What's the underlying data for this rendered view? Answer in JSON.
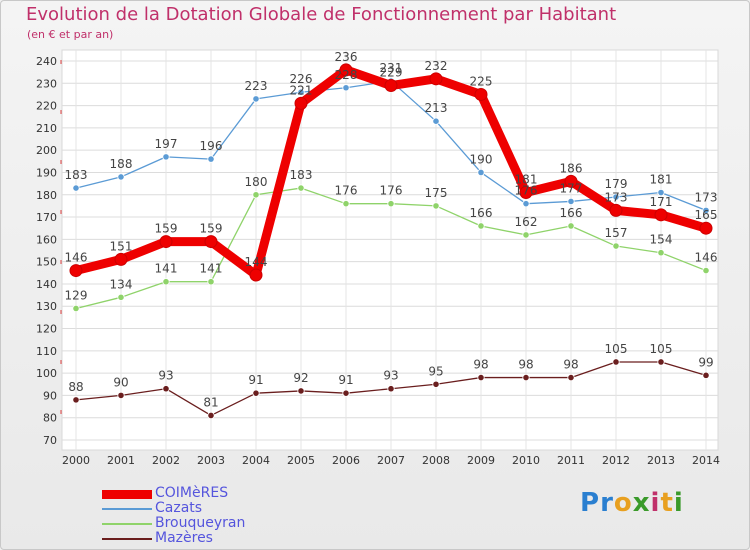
{
  "title": "Evolution de la Dotation Globale de Fonctionnement par Habitant",
  "subtitle": "(en € et par an)",
  "logo": {
    "letters": [
      {
        "ch": "P",
        "color": "#2a7fd0"
      },
      {
        "ch": "r",
        "color": "#2a7fd0"
      },
      {
        "ch": "o",
        "color": "#e8a020"
      },
      {
        "ch": "x",
        "color": "#3a9a2a"
      },
      {
        "ch": "i",
        "color": "#c0306a"
      },
      {
        "ch": "t",
        "color": "#e8a020"
      },
      {
        "ch": "i",
        "color": "#3a9a2a"
      }
    ]
  },
  "chart_data": {
    "type": "line",
    "title": "Evolution de la Dotation Globale de Fonctionnement par Habitant",
    "subtitle": "(en € et par an)",
    "xlabel": "",
    "ylabel": "",
    "ylim": [
      70,
      240
    ],
    "yticks": [
      70,
      80,
      90,
      100,
      110,
      120,
      130,
      140,
      150,
      160,
      170,
      180,
      190,
      200,
      210,
      220,
      230,
      240
    ],
    "grid": true,
    "legend": "bottom-left",
    "x": [
      "2000",
      "2001",
      "2002",
      "2003",
      "2004",
      "2005",
      "2006",
      "2007",
      "2008",
      "2009",
      "2010",
      "2011",
      "2012",
      "2013",
      "2014"
    ],
    "series": [
      {
        "name": "Brouqueyran",
        "color": "#8fd36a",
        "values": [
          129,
          134,
          141,
          141,
          180,
          183,
          176,
          176,
          175,
          166,
          162,
          166,
          157,
          154,
          146
        ]
      },
      {
        "name": "Mazères",
        "color": "#6a1e1e",
        "values": [
          88,
          90,
          93,
          81,
          91,
          92,
          91,
          93,
          95,
          98,
          98,
          98,
          105,
          105,
          99
        ]
      },
      {
        "name": "Cazats",
        "color": "#5b9bd5",
        "values": [
          183,
          188,
          197,
          196,
          223,
          226,
          228,
          231,
          213,
          190,
          176,
          177,
          179,
          181,
          173
        ]
      },
      {
        "name": "COIMèRES",
        "color": "#ee0000",
        "values": [
          146,
          151,
          159,
          159,
          144,
          221,
          236,
          229,
          232,
          225,
          181,
          186,
          173,
          171,
          165
        ]
      }
    ],
    "legend_entries": [
      "COIMèRES",
      "Cazats",
      "Brouqueyran",
      "Mazères"
    ]
  }
}
